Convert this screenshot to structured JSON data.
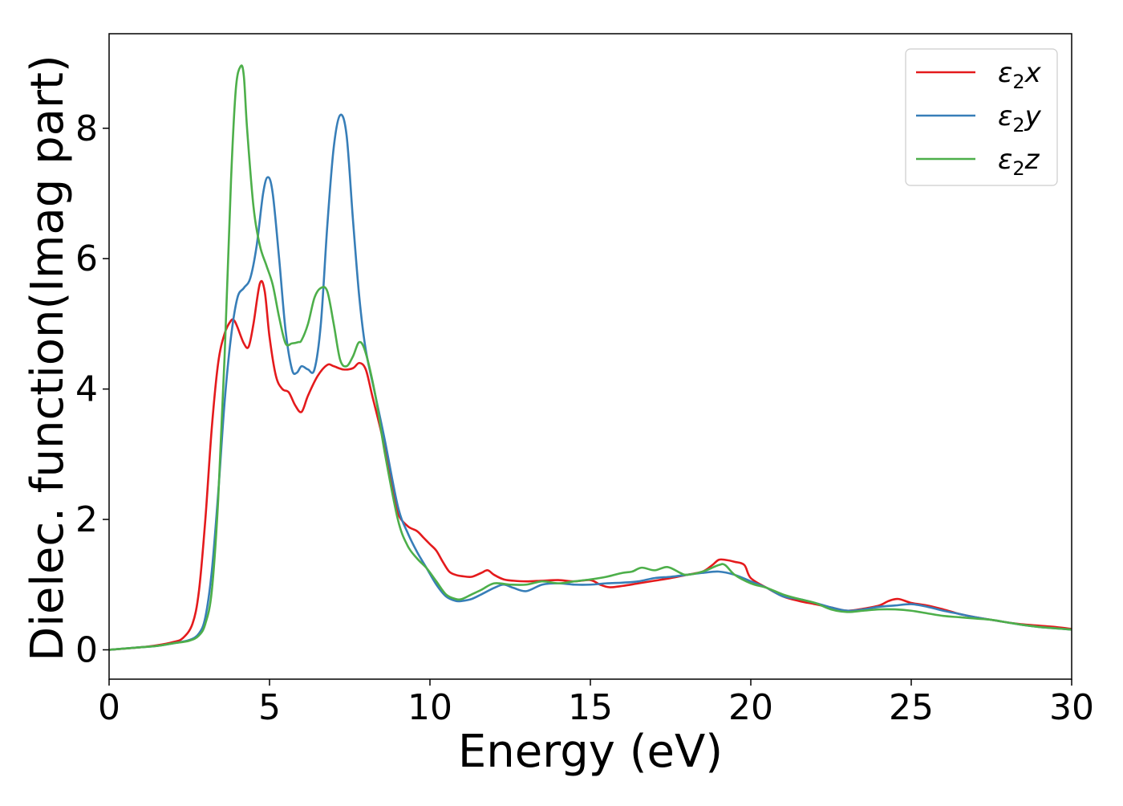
{
  "chart_data": {
    "type": "line",
    "title": "",
    "xlabel": "Energy (eV)",
    "ylabel": "Dielec. function(Imag part)",
    "xlim": [
      0,
      30
    ],
    "ylim": [
      -0.45,
      9.45
    ],
    "xticks": [
      0,
      5,
      10,
      15,
      20,
      25,
      30
    ],
    "yticks": [
      0,
      2,
      4,
      6,
      8
    ],
    "grid": false,
    "legend_position": "top-right",
    "series": [
      {
        "name": "ε2x",
        "legend_base": "ε",
        "legend_sub": "2",
        "legend_tail": "x",
        "color": "#e41a1c",
        "x": [
          0,
          1,
          1.5,
          2,
          2.3,
          2.6,
          2.8,
          3.0,
          3.2,
          3.4,
          3.6,
          3.8,
          3.9,
          4.0,
          4.2,
          4.35,
          4.5,
          4.7,
          4.85,
          5.0,
          5.2,
          5.4,
          5.6,
          5.8,
          6.0,
          6.2,
          6.5,
          6.8,
          7.0,
          7.3,
          7.6,
          7.8,
          8.0,
          8.2,
          8.5,
          8.8,
          9.0,
          9.3,
          9.6,
          9.8,
          10.0,
          10.2,
          10.4,
          10.6,
          10.8,
          11.0,
          11.3,
          11.6,
          11.8,
          12.0,
          12.3,
          12.6,
          13.0,
          13.5,
          14.0,
          14.5,
          15.0,
          15.3,
          15.6,
          16.0,
          16.5,
          17.0,
          17.5,
          18.0,
          18.5,
          18.8,
          19.0,
          19.2,
          19.5,
          19.8,
          20.0,
          20.5,
          21.0,
          21.5,
          22.0,
          22.5,
          23.0,
          23.5,
          24.0,
          24.3,
          24.6,
          25.0,
          25.5,
          26.0,
          26.5,
          27.0,
          27.5,
          28.0,
          28.5,
          29.0,
          29.5,
          30.0
        ],
        "values": [
          0,
          0.04,
          0.07,
          0.12,
          0.18,
          0.4,
          0.9,
          2.0,
          3.4,
          4.4,
          4.85,
          5.05,
          5.05,
          4.95,
          4.7,
          4.65,
          5.0,
          5.62,
          5.5,
          4.8,
          4.2,
          4.0,
          3.95,
          3.75,
          3.65,
          3.9,
          4.2,
          4.37,
          4.35,
          4.3,
          4.32,
          4.4,
          4.3,
          3.9,
          3.3,
          2.6,
          2.1,
          1.9,
          1.82,
          1.72,
          1.62,
          1.52,
          1.35,
          1.2,
          1.15,
          1.13,
          1.12,
          1.18,
          1.22,
          1.15,
          1.08,
          1.06,
          1.05,
          1.06,
          1.07,
          1.05,
          1.07,
          1.0,
          0.96,
          0.98,
          1.02,
          1.06,
          1.1,
          1.15,
          1.2,
          1.3,
          1.38,
          1.38,
          1.35,
          1.3,
          1.1,
          0.95,
          0.82,
          0.75,
          0.7,
          0.65,
          0.6,
          0.63,
          0.68,
          0.75,
          0.78,
          0.72,
          0.68,
          0.62,
          0.55,
          0.5,
          0.46,
          0.42,
          0.39,
          0.37,
          0.35,
          0.32
        ]
      },
      {
        "name": "ε2y",
        "legend_base": "ε",
        "legend_sub": "2",
        "legend_tail": "y",
        "color": "#377eb8",
        "x": [
          0,
          1,
          1.5,
          2,
          2.5,
          2.8,
          3.0,
          3.2,
          3.4,
          3.6,
          3.8,
          4.0,
          4.2,
          4.4,
          4.6,
          4.8,
          4.95,
          5.1,
          5.3,
          5.5,
          5.7,
          5.85,
          6.0,
          6.2,
          6.4,
          6.6,
          6.8,
          7.0,
          7.2,
          7.4,
          7.6,
          7.8,
          8.0,
          8.3,
          8.6,
          9.0,
          9.3,
          9.6,
          9.9,
          10.2,
          10.5,
          10.8,
          11.0,
          11.3,
          11.6,
          12.0,
          12.3,
          12.6,
          13.0,
          13.5,
          14.0,
          14.5,
          15.0,
          15.5,
          16.0,
          16.5,
          17.0,
          17.5,
          18.0,
          18.5,
          19.0,
          19.5,
          20.0,
          20.5,
          21.0,
          21.5,
          22.0,
          22.5,
          23.0,
          23.5,
          24.0,
          24.5,
          25.0,
          25.5,
          26.0,
          26.5,
          27.0,
          27.5,
          28.0,
          28.5,
          29.0,
          29.5,
          30.0
        ],
        "values": [
          0,
          0.04,
          0.06,
          0.1,
          0.15,
          0.25,
          0.5,
          1.2,
          2.4,
          3.8,
          4.8,
          5.4,
          5.55,
          5.7,
          6.2,
          7.0,
          7.25,
          7.0,
          6.0,
          4.9,
          4.3,
          4.25,
          4.35,
          4.3,
          4.3,
          5.0,
          6.5,
          7.7,
          8.2,
          7.9,
          6.6,
          5.4,
          4.6,
          3.9,
          3.2,
          2.2,
          1.8,
          1.5,
          1.25,
          1.0,
          0.82,
          0.75,
          0.75,
          0.78,
          0.85,
          0.95,
          1.0,
          0.95,
          0.9,
          1.0,
          1.02,
          1.0,
          1.0,
          1.02,
          1.03,
          1.05,
          1.1,
          1.12,
          1.15,
          1.18,
          1.2,
          1.15,
          1.05,
          0.95,
          0.82,
          0.78,
          0.72,
          0.65,
          0.6,
          0.62,
          0.66,
          0.68,
          0.7,
          0.66,
          0.6,
          0.55,
          0.5,
          0.46,
          0.42,
          0.38,
          0.35,
          0.33,
          0.31
        ]
      },
      {
        "name": "ε2z",
        "legend_base": "ε",
        "legend_sub": "2",
        "legend_tail": "z",
        "color": "#4daf4a",
        "x": [
          0,
          1,
          1.5,
          2,
          2.5,
          2.8,
          3.0,
          3.2,
          3.4,
          3.6,
          3.8,
          3.95,
          4.1,
          4.2,
          4.3,
          4.5,
          4.7,
          4.9,
          5.1,
          5.3,
          5.5,
          5.7,
          5.9,
          6.0,
          6.2,
          6.4,
          6.6,
          6.8,
          7.0,
          7.2,
          7.4,
          7.6,
          7.8,
          8.0,
          8.3,
          8.6,
          9.0,
          9.3,
          9.6,
          9.9,
          10.2,
          10.5,
          10.8,
          11.0,
          11.3,
          11.6,
          12.0,
          12.5,
          13.0,
          13.5,
          14.0,
          14.5,
          15.0,
          15.5,
          16.0,
          16.3,
          16.6,
          17.0,
          17.4,
          17.8,
          18.0,
          18.5,
          19.0,
          19.2,
          19.5,
          20.0,
          20.5,
          21.0,
          21.5,
          22.0,
          22.5,
          23.0,
          23.5,
          24.0,
          24.5,
          25.0,
          25.5,
          26.0,
          26.5,
          27.0,
          27.5,
          28.0,
          28.5,
          29.0,
          29.5,
          30.0
        ],
        "values": [
          0,
          0.04,
          0.06,
          0.1,
          0.14,
          0.22,
          0.4,
          0.9,
          2.3,
          4.5,
          7.2,
          8.6,
          8.95,
          8.8,
          8.0,
          6.8,
          6.2,
          5.9,
          5.6,
          5.1,
          4.7,
          4.7,
          4.72,
          4.75,
          5.0,
          5.4,
          5.55,
          5.5,
          5.0,
          4.45,
          4.35,
          4.5,
          4.72,
          4.55,
          3.9,
          3.0,
          2.0,
          1.6,
          1.4,
          1.25,
          1.05,
          0.85,
          0.78,
          0.78,
          0.85,
          0.92,
          1.02,
          1.0,
          1.0,
          1.05,
          1.02,
          1.05,
          1.08,
          1.12,
          1.18,
          1.2,
          1.26,
          1.22,
          1.27,
          1.18,
          1.15,
          1.2,
          1.3,
          1.3,
          1.15,
          1.02,
          0.95,
          0.85,
          0.78,
          0.72,
          0.62,
          0.58,
          0.6,
          0.62,
          0.62,
          0.6,
          0.56,
          0.52,
          0.5,
          0.48,
          0.46,
          0.42,
          0.38,
          0.35,
          0.33,
          0.31
        ]
      }
    ]
  }
}
